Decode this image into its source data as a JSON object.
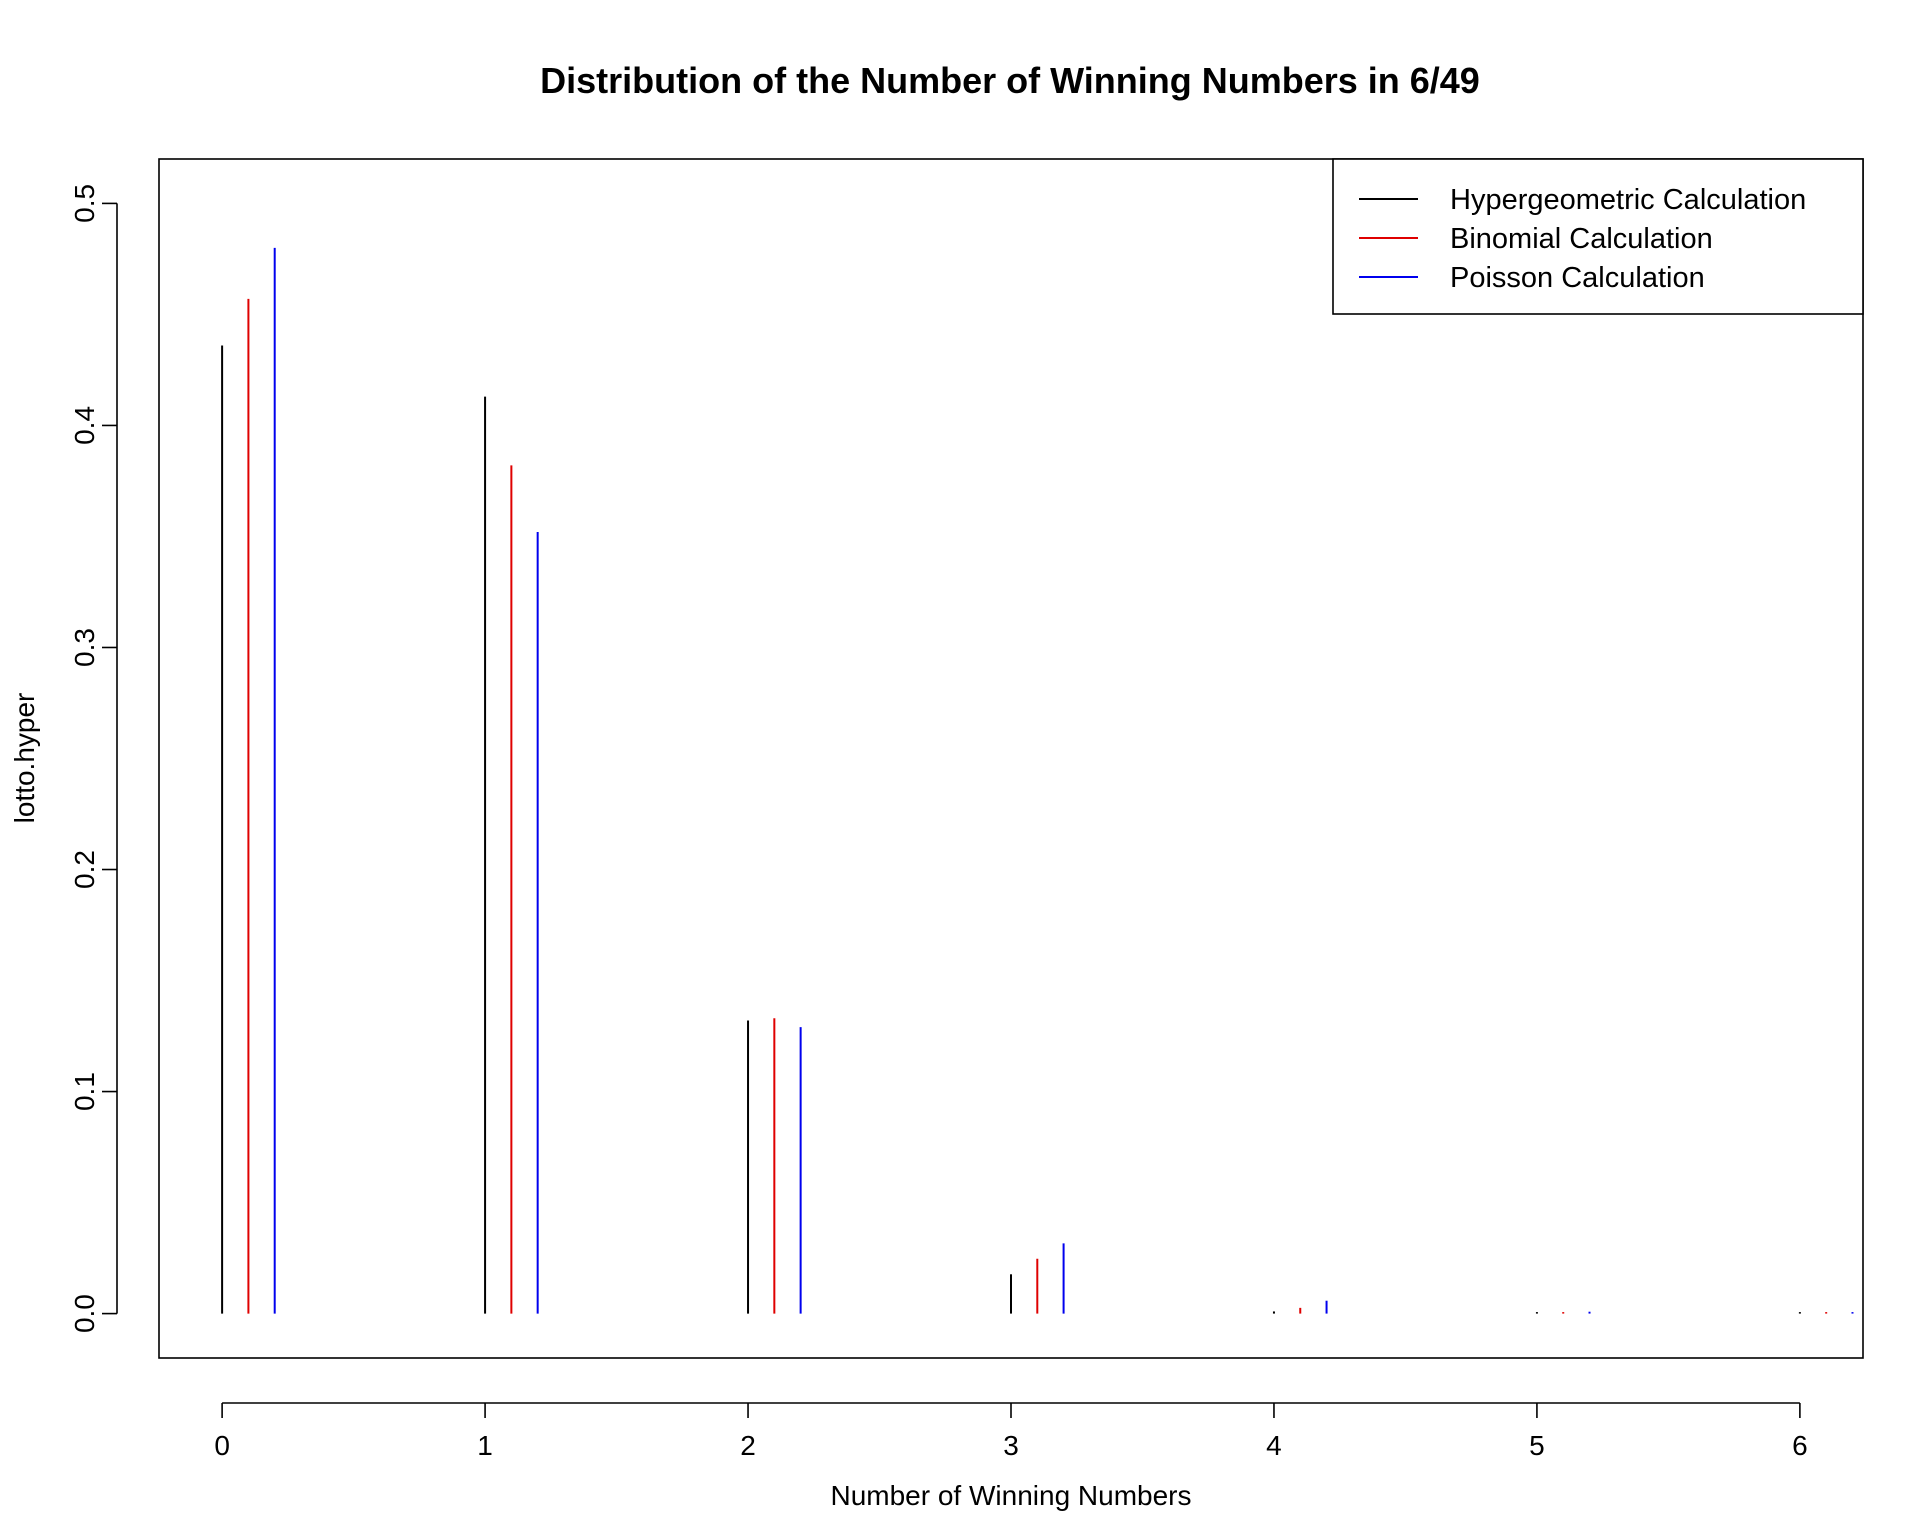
{
  "chart_data": {
    "type": "bar",
    "title": "Distribution of the Number of Winning Numbers in 6/49",
    "xlabel": "Number of Winning Numbers",
    "ylabel": "lotto.hyper",
    "categories": [
      0,
      1,
      2,
      3,
      4,
      5,
      6
    ],
    "x_ticks": [
      "0",
      "1",
      "2",
      "3",
      "4",
      "5",
      "6"
    ],
    "y_ticks": [
      "0.0",
      "0.1",
      "0.2",
      "0.3",
      "0.4",
      "0.5"
    ],
    "xlim": [
      -0.24,
      6.24
    ],
    "ylim": [
      -0.02,
      0.52
    ],
    "series_offsets": [
      0,
      0.1,
      0.2
    ],
    "series": [
      {
        "name": "Hypergeometric Calculation",
        "color": "#000000",
        "values": [
          0.436,
          0.413,
          0.132,
          0.0177,
          0.000969,
          1.84e-05,
          7.15e-08
        ]
      },
      {
        "name": "Binomial Calculation",
        "color": "#DF0000",
        "values": [
          0.457,
          0.382,
          0.133,
          0.0247,
          0.00258,
          0.000143,
          3.3e-06
        ]
      },
      {
        "name": "Poisson Calculation",
        "color": "#0000EE",
        "values": [
          0.48,
          0.352,
          0.129,
          0.0316,
          0.0058,
          0.000851,
          0.000104
        ]
      }
    ],
    "legend": {
      "position": "top-right"
    },
    "grid": false
  }
}
